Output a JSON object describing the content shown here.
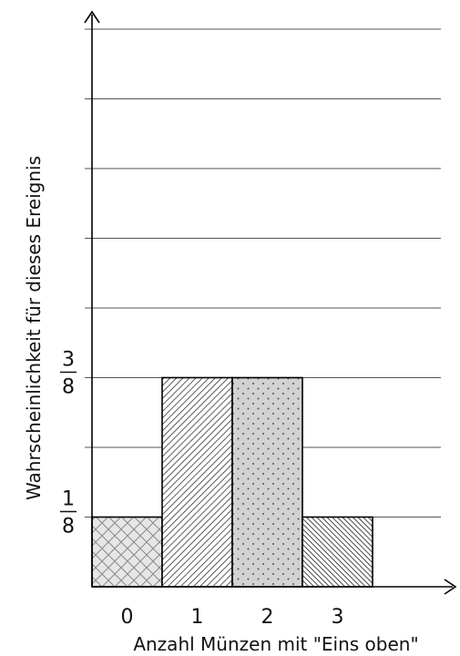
{
  "chart_data": {
    "type": "bar",
    "title": "",
    "categories": [
      "0",
      "1",
      "2",
      "3"
    ],
    "values": [
      0.125,
      0.375,
      0.375,
      0.125
    ],
    "xlabel": "Anzahl Münzen mit \"Eins oben\"",
    "ylabel": "Wahrscheinlichkeit für dieses Ereignis",
    "ylim": [
      0,
      1
    ],
    "grid": true,
    "gridlines": [
      0.125,
      0.25,
      0.375,
      0.5,
      0.625,
      0.75,
      0.875,
      1.0
    ],
    "y_tick_labels": [
      {
        "value": 0.125,
        "num": "1",
        "den": "8"
      },
      {
        "value": 0.375,
        "num": "3",
        "den": "8"
      }
    ],
    "bar_patterns": [
      "crosshatch",
      "diagonal-fine",
      "dots",
      "diagonal-dense"
    ],
    "bar_fill_colors": [
      "#e6e6e6",
      "#ffffff",
      "#d2d2d2",
      "#ffffff"
    ],
    "colors": {
      "axis": "#000000",
      "grid": "#555555",
      "bar_outline": "#000000"
    }
  }
}
